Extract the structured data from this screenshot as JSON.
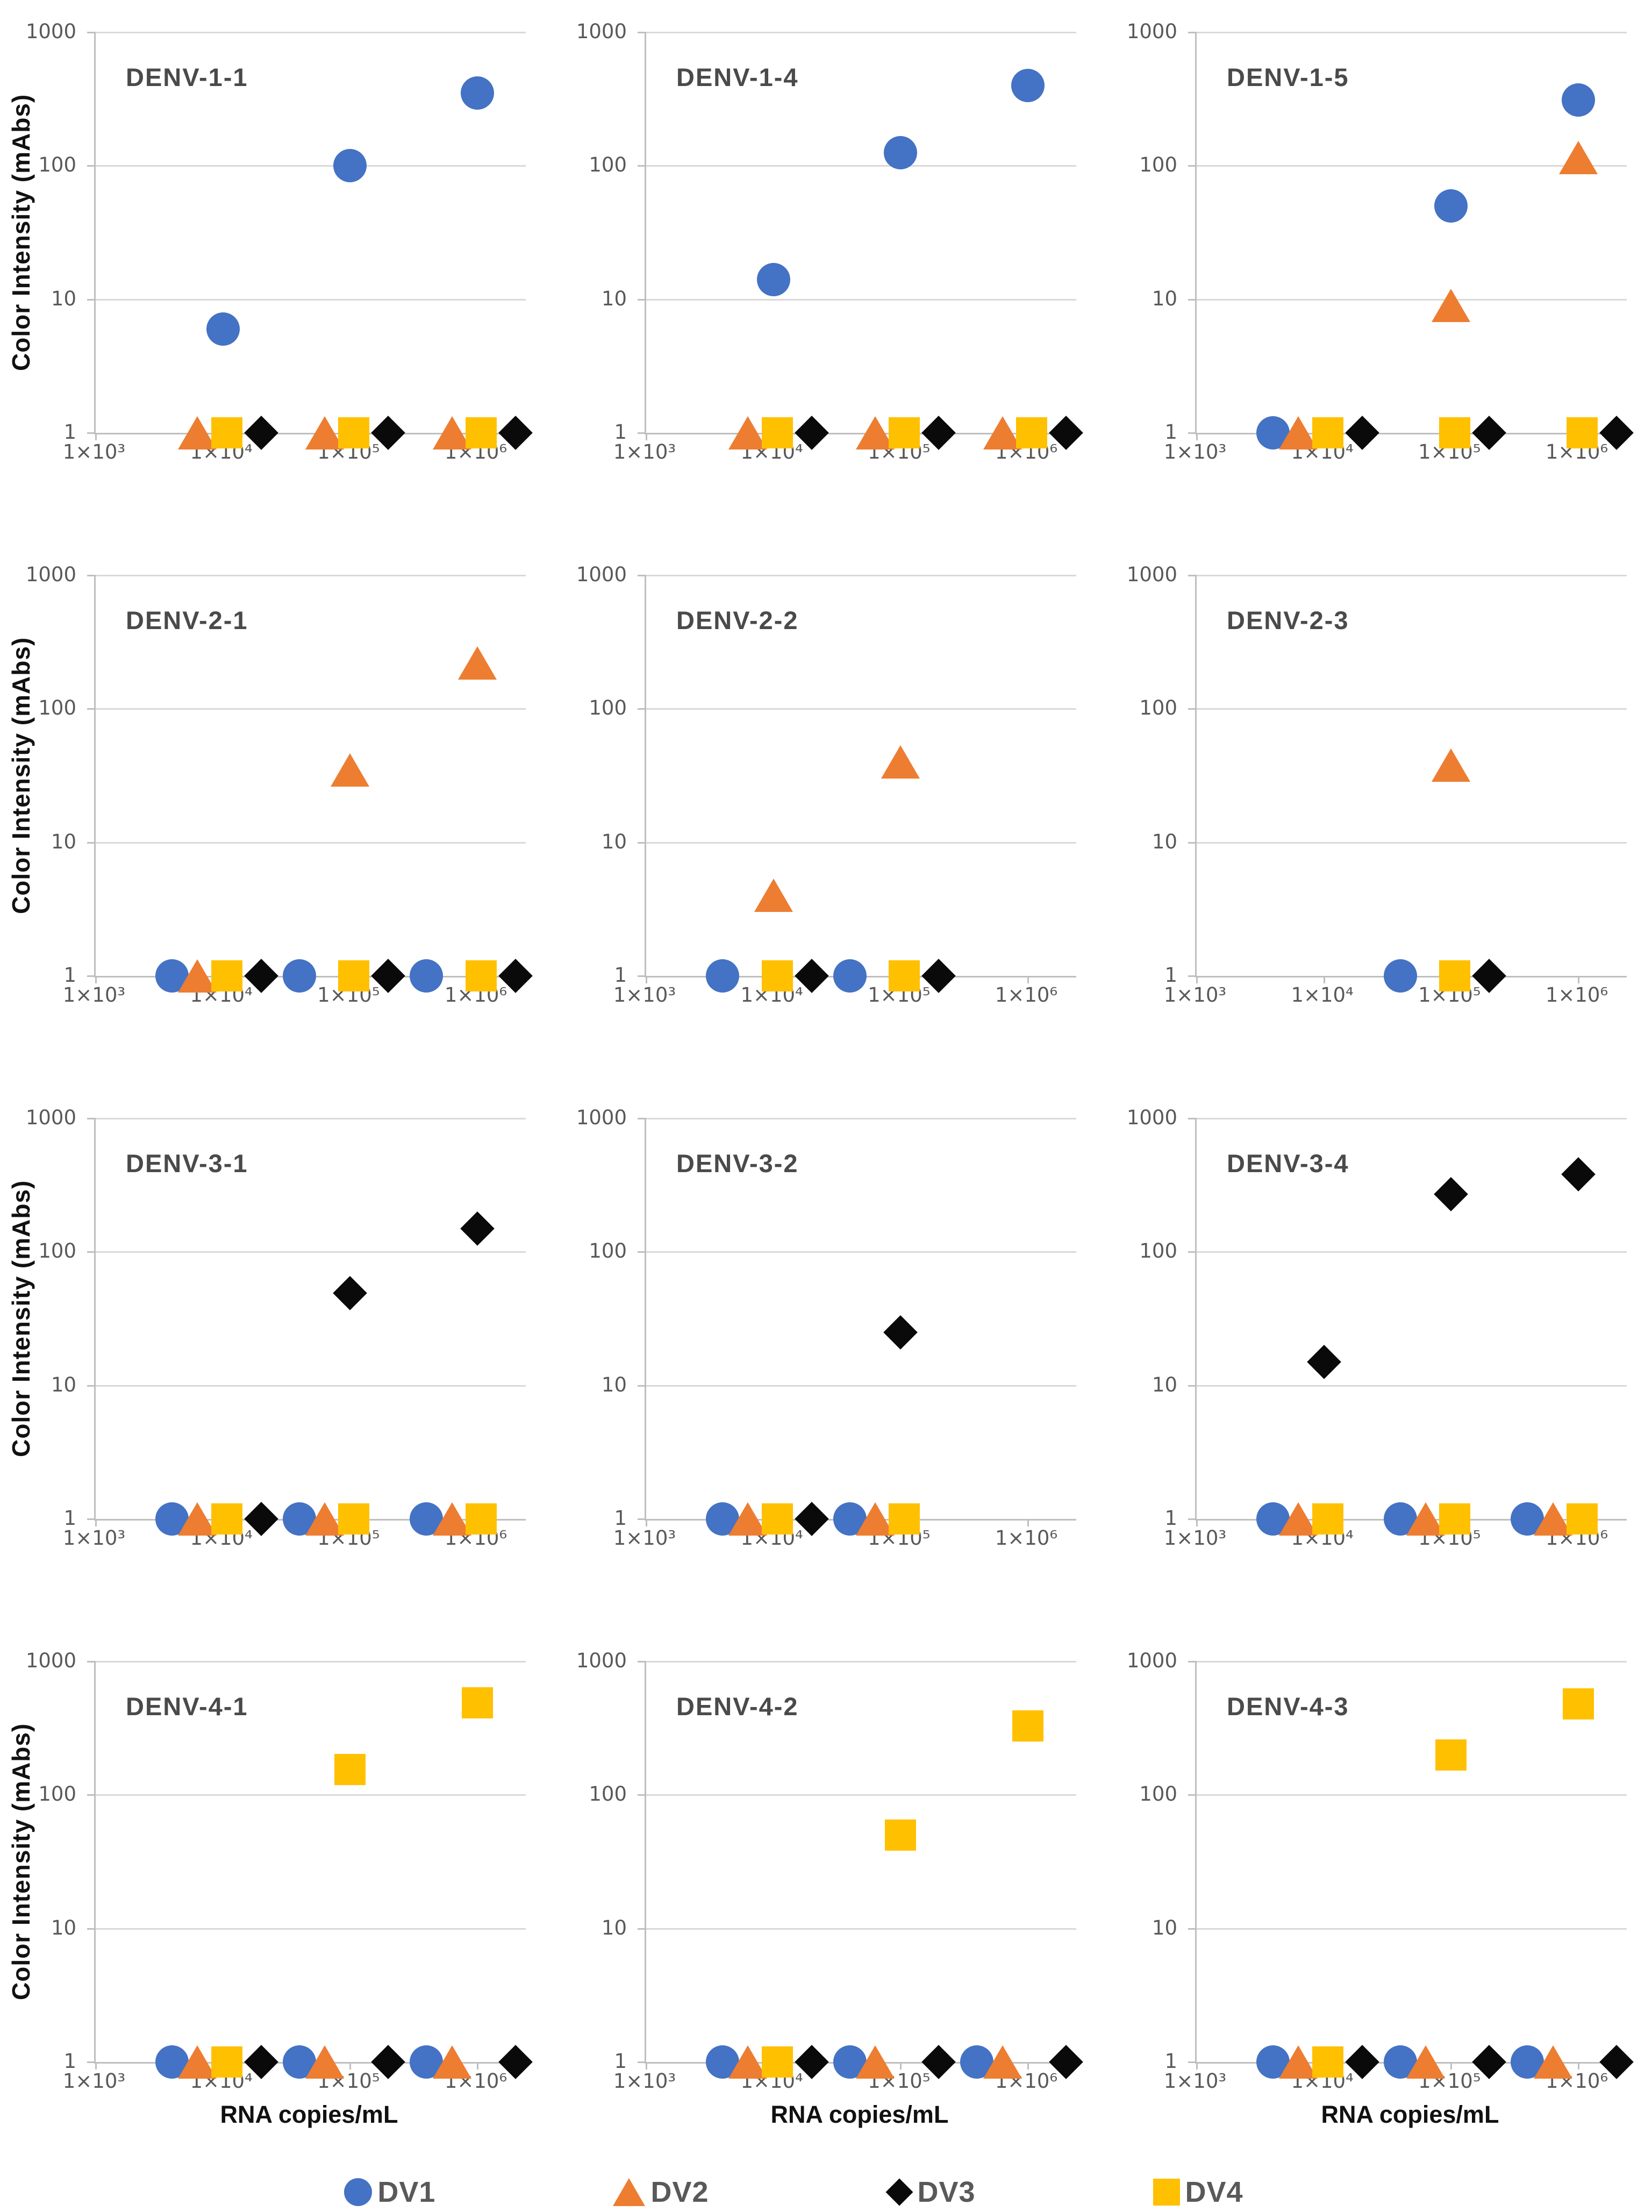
{
  "figure": {
    "ylabel": "Color Intensity (mAbs)",
    "xlabel": "RNA copies/mL",
    "x_ticks": [
      "1×10³",
      "1×10⁴",
      "1×10⁵",
      "1×10⁶"
    ],
    "y_ticks": [
      "1000",
      "100",
      "10",
      "1"
    ]
  },
  "colors": {
    "DV1": "#4472C4",
    "DV2": "#ED7D31",
    "DV3": "#0A0A0A",
    "DV4": "#FFC000",
    "grid": "#D9D9D9",
    "axis": "#BFBFBF",
    "tick_text": "#595959",
    "title_text": "#4a4a4a"
  },
  "shapes": {
    "DV1": "circle",
    "DV2": "triangle",
    "DV3": "diamond",
    "DV4": "square"
  },
  "legend": [
    {
      "series": "DV1",
      "shape": "circle"
    },
    {
      "series": "DV2",
      "shape": "triangle"
    },
    {
      "series": "DV3",
      "shape": "diamond"
    },
    {
      "series": "DV4",
      "shape": "square"
    }
  ],
  "render": {
    "x_log_min": 3,
    "x_log_max": 6.38,
    "y_log_min": 0,
    "y_log_max": 3,
    "x_tick_logs": [
      3,
      4,
      5,
      6
    ],
    "baseline_offsets_dec": {
      "DV1": -0.4,
      "DV2": -0.2,
      "DV4": 0.03,
      "DV3": 0.3
    },
    "draw_order": {
      "DV1": 1,
      "DV2": 2,
      "DV4": 3,
      "DV3": 4
    }
  },
  "chart_data": [
    {
      "type": "scatter",
      "title": "DENV-1-1",
      "xlabel": "",
      "ylabel": "Color Intensity (mAbs)",
      "xlim": [
        1000,
        2400000
      ],
      "ylim": [
        1,
        1000
      ],
      "log_log": true,
      "series": [
        {
          "name": "DV1",
          "points": [
            [
              10000,
              6
            ],
            [
              100000,
              100
            ],
            [
              1000000,
              350
            ]
          ]
        },
        {
          "name": "DV2",
          "points": [
            [
              10000,
              1
            ],
            [
              100000,
              1
            ],
            [
              1000000,
              1
            ]
          ]
        },
        {
          "name": "DV4",
          "points": [
            [
              10000,
              1
            ],
            [
              100000,
              1
            ],
            [
              1000000,
              1
            ]
          ]
        },
        {
          "name": "DV3",
          "points": [
            [
              10000,
              1
            ],
            [
              100000,
              1
            ],
            [
              1000000,
              1
            ]
          ]
        }
      ]
    },
    {
      "type": "scatter",
      "title": "DENV-1-4",
      "xlabel": "",
      "ylabel": "",
      "xlim": [
        1000,
        2400000
      ],
      "ylim": [
        1,
        1000
      ],
      "log_log": true,
      "series": [
        {
          "name": "DV1",
          "points": [
            [
              10000,
              14
            ],
            [
              100000,
              125
            ],
            [
              1000000,
              400
            ]
          ]
        },
        {
          "name": "DV2",
          "points": [
            [
              10000,
              1
            ],
            [
              100000,
              1
            ],
            [
              1000000,
              1
            ]
          ]
        },
        {
          "name": "DV4",
          "points": [
            [
              10000,
              1
            ],
            [
              100000,
              1
            ],
            [
              1000000,
              1
            ]
          ]
        },
        {
          "name": "DV3",
          "points": [
            [
              10000,
              1
            ],
            [
              100000,
              1
            ],
            [
              1000000,
              1
            ]
          ]
        }
      ]
    },
    {
      "type": "scatter",
      "title": "DENV-1-5",
      "xlabel": "",
      "ylabel": "",
      "xlim": [
        1000,
        2400000
      ],
      "ylim": [
        1,
        1000
      ],
      "log_log": true,
      "series": [
        {
          "name": "DV1",
          "points": [
            [
              10000,
              1
            ],
            [
              100000,
              50
            ],
            [
              1000000,
              310
            ]
          ]
        },
        {
          "name": "DV2",
          "points": [
            [
              10000,
              1
            ],
            [
              100000,
              9
            ],
            [
              1000000,
              115
            ]
          ]
        },
        {
          "name": "DV4",
          "points": [
            [
              10000,
              1
            ],
            [
              100000,
              1
            ],
            [
              1000000,
              1
            ]
          ]
        },
        {
          "name": "DV3",
          "points": [
            [
              10000,
              1
            ],
            [
              100000,
              1
            ],
            [
              1000000,
              1
            ]
          ]
        }
      ]
    },
    {
      "type": "scatter",
      "title": "DENV-2-1",
      "xlabel": "",
      "ylabel": "Color Intensity (mAbs)",
      "xlim": [
        1000,
        2400000
      ],
      "ylim": [
        1,
        1000
      ],
      "log_log": true,
      "series": [
        {
          "name": "DV1",
          "points": [
            [
              10000,
              1
            ],
            [
              100000,
              1
            ],
            [
              1000000,
              1
            ]
          ]
        },
        {
          "name": "DV2",
          "points": [
            [
              10000,
              1
            ],
            [
              100000,
              35
            ],
            [
              1000000,
              220
            ]
          ]
        },
        {
          "name": "DV4",
          "points": [
            [
              10000,
              1
            ],
            [
              100000,
              1
            ],
            [
              1000000,
              1
            ]
          ]
        },
        {
          "name": "DV3",
          "points": [
            [
              10000,
              1
            ],
            [
              100000,
              1
            ],
            [
              1000000,
              1
            ]
          ]
        }
      ]
    },
    {
      "type": "scatter",
      "title": "DENV-2-2",
      "xlabel": "",
      "ylabel": "",
      "xlim": [
        1000,
        2400000
      ],
      "ylim": [
        1,
        1000
      ],
      "log_log": true,
      "series": [
        {
          "name": "DV1",
          "points": [
            [
              10000,
              1
            ],
            [
              100000,
              1
            ]
          ]
        },
        {
          "name": "DV2",
          "points": [
            [
              10000,
              4
            ],
            [
              100000,
              40
            ]
          ]
        },
        {
          "name": "DV4",
          "points": [
            [
              10000,
              1
            ],
            [
              100000,
              1
            ]
          ]
        },
        {
          "name": "DV3",
          "points": [
            [
              10000,
              1
            ],
            [
              100000,
              1
            ]
          ]
        }
      ]
    },
    {
      "type": "scatter",
      "title": "DENV-2-3",
      "xlabel": "",
      "ylabel": "",
      "xlim": [
        1000,
        2400000
      ],
      "ylim": [
        1,
        1000
      ],
      "log_log": true,
      "series": [
        {
          "name": "DV1",
          "points": [
            [
              100000,
              1
            ]
          ]
        },
        {
          "name": "DV2",
          "points": [
            [
              100000,
              38
            ]
          ]
        },
        {
          "name": "DV4",
          "points": [
            [
              100000,
              1
            ]
          ]
        },
        {
          "name": "DV3",
          "points": [
            [
              100000,
              1
            ]
          ]
        }
      ]
    },
    {
      "type": "scatter",
      "title": "DENV-3-1",
      "xlabel": "",
      "ylabel": "Color Intensity (mAbs)",
      "xlim": [
        1000,
        2400000
      ],
      "ylim": [
        1,
        1000
      ],
      "log_log": true,
      "series": [
        {
          "name": "DV1",
          "points": [
            [
              10000,
              1
            ],
            [
              100000,
              1
            ],
            [
              1000000,
              1
            ]
          ]
        },
        {
          "name": "DV2",
          "points": [
            [
              10000,
              1
            ],
            [
              100000,
              1
            ],
            [
              1000000,
              1
            ]
          ]
        },
        {
          "name": "DV4",
          "points": [
            [
              10000,
              1
            ],
            [
              100000,
              1
            ],
            [
              1000000,
              1
            ]
          ]
        },
        {
          "name": "DV3",
          "points": [
            [
              10000,
              1
            ],
            [
              100000,
              49
            ],
            [
              1000000,
              150
            ]
          ]
        }
      ]
    },
    {
      "type": "scatter",
      "title": "DENV-3-2",
      "xlabel": "",
      "ylabel": "",
      "xlim": [
        1000,
        2400000
      ],
      "ylim": [
        1,
        1000
      ],
      "log_log": true,
      "series": [
        {
          "name": "DV1",
          "points": [
            [
              10000,
              1
            ],
            [
              100000,
              1
            ]
          ]
        },
        {
          "name": "DV2",
          "points": [
            [
              10000,
              1
            ],
            [
              100000,
              1
            ]
          ]
        },
        {
          "name": "DV4",
          "points": [
            [
              10000,
              1
            ],
            [
              100000,
              1
            ]
          ]
        },
        {
          "name": "DV3",
          "points": [
            [
              10000,
              1
            ],
            [
              100000,
              25
            ]
          ]
        }
      ]
    },
    {
      "type": "scatter",
      "title": "DENV-3-4",
      "xlabel": "",
      "ylabel": "",
      "xlim": [
        1000,
        2400000
      ],
      "ylim": [
        1,
        1000
      ],
      "log_log": true,
      "series": [
        {
          "name": "DV1",
          "points": [
            [
              10000,
              1
            ],
            [
              100000,
              1
            ],
            [
              1000000,
              1
            ]
          ]
        },
        {
          "name": "DV2",
          "points": [
            [
              10000,
              1
            ],
            [
              100000,
              1
            ],
            [
              1000000,
              1
            ]
          ]
        },
        {
          "name": "DV4",
          "points": [
            [
              10000,
              1
            ],
            [
              100000,
              1
            ],
            [
              1000000,
              1
            ]
          ]
        },
        {
          "name": "DV3",
          "points": [
            [
              10000,
              15
            ],
            [
              100000,
              270
            ],
            [
              1000000,
              380
            ]
          ]
        }
      ]
    },
    {
      "type": "scatter",
      "title": "DENV-4-1",
      "xlabel": "RNA copies/mL",
      "ylabel": "Color Intensity (mAbs)",
      "xlim": [
        1000,
        2400000
      ],
      "ylim": [
        1,
        1000
      ],
      "log_log": true,
      "series": [
        {
          "name": "DV1",
          "points": [
            [
              10000,
              1
            ],
            [
              100000,
              1
            ],
            [
              1000000,
              1
            ]
          ]
        },
        {
          "name": "DV2",
          "points": [
            [
              10000,
              1
            ],
            [
              100000,
              1
            ],
            [
              1000000,
              1
            ]
          ]
        },
        {
          "name": "DV4",
          "points": [
            [
              10000,
              1
            ],
            [
              100000,
              155
            ],
            [
              1000000,
              490
            ]
          ]
        },
        {
          "name": "DV3",
          "points": [
            [
              10000,
              1
            ],
            [
              100000,
              1
            ],
            [
              1000000,
              1
            ]
          ]
        }
      ]
    },
    {
      "type": "scatter",
      "title": "DENV-4-2",
      "xlabel": "RNA copies/mL",
      "ylabel": "",
      "xlim": [
        1000,
        2400000
      ],
      "ylim": [
        1,
        1000
      ],
      "log_log": true,
      "series": [
        {
          "name": "DV1",
          "points": [
            [
              10000,
              1
            ],
            [
              100000,
              1
            ],
            [
              1000000,
              1
            ]
          ]
        },
        {
          "name": "DV2",
          "points": [
            [
              10000,
              1
            ],
            [
              100000,
              1
            ],
            [
              1000000,
              1
            ]
          ]
        },
        {
          "name": "DV4",
          "points": [
            [
              10000,
              1
            ],
            [
              100000,
              50
            ],
            [
              1000000,
              330
            ]
          ]
        },
        {
          "name": "DV3",
          "points": [
            [
              10000,
              1
            ],
            [
              100000,
              1
            ],
            [
              1000000,
              1
            ]
          ]
        }
      ]
    },
    {
      "type": "scatter",
      "title": "DENV-4-3",
      "xlabel": "RNA copies/mL",
      "ylabel": "",
      "xlim": [
        1000,
        2400000
      ],
      "ylim": [
        1,
        1000
      ],
      "log_log": true,
      "series": [
        {
          "name": "DV1",
          "points": [
            [
              10000,
              1
            ],
            [
              100000,
              1
            ],
            [
              1000000,
              1
            ]
          ]
        },
        {
          "name": "DV2",
          "points": [
            [
              10000,
              1
            ],
            [
              100000,
              1
            ],
            [
              1000000,
              1
            ]
          ]
        },
        {
          "name": "DV4",
          "points": [
            [
              10000,
              1
            ],
            [
              100000,
              200
            ],
            [
              1000000,
              480
            ]
          ]
        },
        {
          "name": "DV3",
          "points": [
            [
              10000,
              1
            ],
            [
              100000,
              1
            ],
            [
              1000000,
              1
            ]
          ]
        }
      ]
    }
  ]
}
